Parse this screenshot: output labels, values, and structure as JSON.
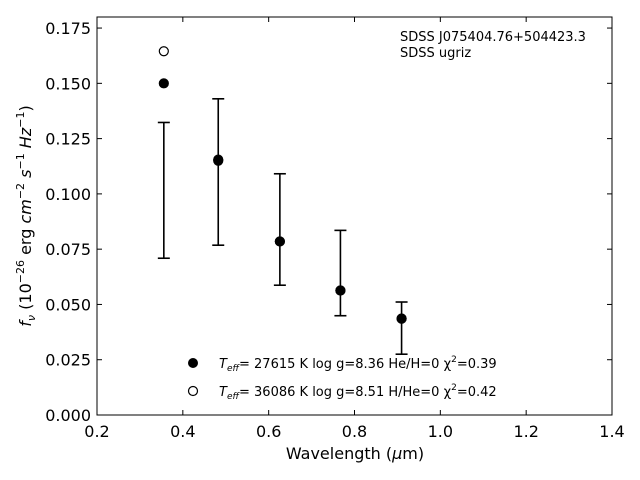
{
  "chart_data": {
    "type": "scatter",
    "xlabel": "Wavelength (μm)",
    "ylabel": "f_ν (10^-26 erg cm^-2 s^-1 Hz^-1)",
    "xlim": [
      0.2,
      1.4
    ],
    "ylim": [
      0.0,
      0.18
    ],
    "x_ticks": [
      "0.2",
      "0.4",
      "0.6",
      "0.8",
      "1.0",
      "1.2",
      "1.4"
    ],
    "y_ticks": [
      "0.000",
      "0.025",
      "0.050",
      "0.075",
      "0.100",
      "0.125",
      "0.150",
      "0.175"
    ],
    "x_tick_values": [
      0.2,
      0.4,
      0.6,
      0.8,
      1.0,
      1.2,
      1.4
    ],
    "y_tick_values": [
      0.0,
      0.025,
      0.05,
      0.075,
      0.1,
      0.125,
      0.15,
      0.175
    ],
    "annotation_lines": [
      "SDSS J075404.76+504423.3",
      "SDSS ugriz"
    ],
    "observed": {
      "x": [
        0.3557,
        0.4825,
        0.6261,
        0.7672,
        0.9097
      ],
      "y": [
        0.1016,
        0.1099,
        0.0839,
        0.0642,
        0.0393
      ],
      "yerr": [
        0.0307,
        0.0331,
        0.0252,
        0.0193,
        0.0118
      ]
    },
    "series": [
      {
        "name_parts": {
          "teff": "= 27615 K",
          "rest": "log g=8.36  He/H=0  χ",
          "chi": "=0.39"
        },
        "marker": "filled",
        "x": [
          0.3557,
          0.4825,
          0.6261,
          0.7672,
          0.9097
        ],
        "y": [
          0.15,
          0.115,
          0.0785,
          0.0563,
          0.0436
        ]
      },
      {
        "name_parts": {
          "teff": "= 36086 K",
          "rest": "log g=8.51  H/He=0  χ",
          "chi": "=0.42"
        },
        "marker": "open",
        "x": [
          0.3557,
          0.4825,
          0.6261,
          0.7672,
          0.9097
        ],
        "y": [
          0.1645,
          0.1155,
          0.0785,
          0.0563,
          0.0436
        ]
      }
    ],
    "legend_placement": "bottom-center",
    "grid": false
  }
}
